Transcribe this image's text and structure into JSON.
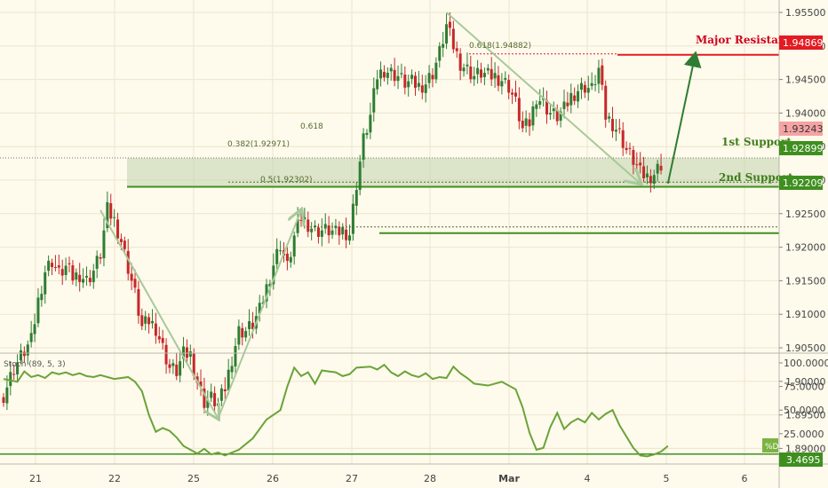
{
  "chart_data": [
    {
      "type": "candlestick",
      "title": "",
      "price_axis": {
        "ylim": [
          1.889,
          1.957
        ],
        "ticks": [
          "1.95500",
          "1.95000",
          "1.94500",
          "1.94000",
          "1.93500",
          "1.93000",
          "1.92500",
          "1.92000",
          "1.91500",
          "1.91000",
          "1.90500",
          "1.90000",
          "1.89500",
          "1.89000"
        ]
      },
      "x_axis": {
        "ticks": [
          "21",
          "22",
          "25",
          "26",
          "27",
          "28",
          "Mar",
          "4",
          "5",
          "6"
        ]
      },
      "price_labels": {
        "major_resistance": "1.94869",
        "current": "1.93243",
        "first_support": "1.92899",
        "second_support": "1.92209"
      },
      "annotations": {
        "major_resistance": "Major Resistance",
        "first_support": "1st Support",
        "second_support": "2nd Support",
        "fib_0618_left": "0.618",
        "fib_0618_right": "0.618(1.94882)",
        "fib_0382": "0.382(1.92971)",
        "fib_05": "0.5(1.92302)"
      },
      "zones": [
        {
          "name": "support-zone",
          "from": 1.929,
          "to": 1.9333
        }
      ],
      "close_path": [
        [
          0,
          1.898
        ],
        [
          1.5,
          1.902
        ],
        [
          3,
          1.9045
        ],
        [
          4,
          1.906
        ],
        [
          5,
          1.912
        ],
        [
          6,
          1.9165
        ],
        [
          7,
          1.918
        ],
        [
          8,
          1.916
        ],
        [
          9,
          1.917
        ],
        [
          10,
          1.9155
        ],
        [
          11,
          1.916
        ],
        [
          12,
          1.915
        ],
        [
          13,
          1.9165
        ],
        [
          14,
          1.919
        ],
        [
          15,
          1.9255
        ],
        [
          16,
          1.924
        ],
        [
          17,
          1.921
        ],
        [
          18,
          1.917
        ],
        [
          19,
          1.913
        ],
        [
          20,
          1.908
        ],
        [
          21,
          1.909
        ],
        [
          22,
          1.908
        ],
        [
          23,
          1.905
        ],
        [
          24,
          1.902
        ],
        [
          25,
          1.9015
        ],
        [
          26,
          1.904
        ],
        [
          27,
          1.904
        ],
        [
          28,
          1.9
        ],
        [
          29,
          1.897
        ],
        [
          30,
          1.8975
        ],
        [
          31,
          1.8965
        ],
        [
          32,
          1.899
        ],
        [
          33,
          1.9035
        ],
        [
          34,
          1.9075
        ],
        [
          35,
          1.9075
        ],
        [
          36,
          1.9085
        ],
        [
          37,
          1.9105
        ],
        [
          38,
          1.914
        ],
        [
          39,
          1.9175
        ],
        [
          40,
          1.9205
        ],
        [
          41,
          1.917
        ],
        [
          42,
          1.9215
        ],
        [
          43,
          1.9245
        ],
        [
          44,
          1.9235
        ],
        [
          45,
          1.9225
        ],
        [
          46,
          1.9225
        ],
        [
          47,
          1.9225
        ],
        [
          48,
          1.922
        ],
        [
          49,
          1.9225
        ],
        [
          50,
          1.922
        ],
        [
          51,
          1.9295
        ],
        [
          52,
          1.936
        ],
        [
          53,
          1.9395
        ],
        [
          54,
          1.9455
        ],
        [
          55,
          1.9465
        ],
        [
          56,
          1.946
        ],
        [
          57,
          1.9455
        ],
        [
          58,
          1.9445
        ],
        [
          59,
          1.9445
        ],
        [
          60,
          1.944
        ],
        [
          61,
          1.9445
        ],
        [
          62,
          1.946
        ],
        [
          63,
          1.949
        ],
        [
          64,
          1.953
        ],
        [
          65,
          1.95
        ],
        [
          66,
          1.9475
        ],
        [
          67,
          1.9465
        ],
        [
          68,
          1.9455
        ],
        [
          69,
          1.946
        ],
        [
          70,
          1.9455
        ],
        [
          71,
          1.9455
        ],
        [
          72,
          1.945
        ],
        [
          73,
          1.944
        ],
        [
          74,
          1.9415
        ],
        [
          75,
          1.9375
        ],
        [
          76,
          1.9385
        ],
        [
          77,
          1.9425
        ],
        [
          78,
          1.9415
        ],
        [
          79,
          1.94
        ],
        [
          80,
          1.9395
        ],
        [
          81,
          1.9405
        ],
        [
          82,
          1.9425
        ],
        [
          83,
          1.9435
        ],
        [
          84,
          1.944
        ],
        [
          85,
          1.9435
        ],
        [
          86,
          1.9465
        ],
        [
          87,
          1.9395
        ],
        [
          88,
          1.9385
        ],
        [
          89,
          1.937
        ],
        [
          90,
          1.9345
        ],
        [
          91,
          1.933
        ],
        [
          92,
          1.931
        ],
        [
          93,
          1.9305
        ],
        [
          94,
          1.931
        ],
        [
          95,
          1.9324
        ]
      ],
      "pattern_arrows": [
        {
          "from": [
            14,
            1.9255
          ],
          "to": [
            31,
            1.8945
          ]
        },
        {
          "from": [
            31,
            1.8945
          ],
          "to": [
            43,
            1.9255
          ]
        },
        {
          "from": [
            64,
            1.955
          ],
          "to": [
            92,
            1.9295
          ]
        },
        {
          "from": [
            96,
            1.9295
          ],
          "to": [
            100,
            1.949
          ]
        }
      ]
    },
    {
      "type": "line",
      "title": "Stoch (89, 5, 3)",
      "series": [
        {
          "name": "%D",
          "values": [
            [
              0,
              83
            ],
            [
              2,
              80
            ],
            [
              3,
              91
            ],
            [
              4,
              85
            ],
            [
              5,
              87
            ],
            [
              6,
              84
            ],
            [
              7,
              90
            ],
            [
              8,
              88
            ],
            [
              9,
              90
            ],
            [
              10,
              87
            ],
            [
              11,
              89
            ],
            [
              12,
              86
            ],
            [
              13,
              85
            ],
            [
              14,
              87
            ],
            [
              16,
              83
            ],
            [
              18,
              85
            ],
            [
              19,
              80
            ],
            [
              20,
              70
            ],
            [
              21,
              45
            ],
            [
              22,
              27
            ],
            [
              23,
              31
            ],
            [
              24,
              28
            ],
            [
              25,
              21
            ],
            [
              26,
              12
            ],
            [
              28,
              4
            ],
            [
              29,
              9
            ],
            [
              30,
              3
            ],
            [
              31,
              5
            ],
            [
              32,
              2
            ],
            [
              34,
              8
            ],
            [
              36,
              20
            ],
            [
              38,
              40
            ],
            [
              40,
              50
            ],
            [
              41,
              75
            ],
            [
              42,
              95
            ],
            [
              43,
              86
            ],
            [
              44,
              90
            ],
            [
              45,
              78
            ],
            [
              46,
              92
            ],
            [
              47,
              91
            ],
            [
              48,
              90
            ],
            [
              49,
              86
            ],
            [
              50,
              88
            ],
            [
              51,
              95
            ],
            [
              53,
              96
            ],
            [
              54,
              93
            ],
            [
              55,
              98
            ],
            [
              56,
              90
            ],
            [
              57,
              86
            ],
            [
              58,
              91
            ],
            [
              59,
              87
            ],
            [
              60,
              85
            ],
            [
              61,
              89
            ],
            [
              62,
              83
            ],
            [
              63,
              85
            ],
            [
              64,
              84
            ],
            [
              65,
              96
            ],
            [
              66,
              89
            ],
            [
              67,
              84
            ],
            [
              68,
              78
            ],
            [
              70,
              76
            ],
            [
              72,
              80
            ],
            [
              74,
              72
            ],
            [
              75,
              53
            ],
            [
              76,
              26
            ],
            [
              77,
              8
            ],
            [
              78,
              10
            ],
            [
              79,
              32
            ],
            [
              80,
              47
            ],
            [
              81,
              30
            ],
            [
              82,
              37
            ],
            [
              83,
              41
            ],
            [
              84,
              37
            ],
            [
              85,
              47
            ],
            [
              86,
              40
            ],
            [
              87,
              46
            ],
            [
              88,
              50
            ],
            [
              89,
              34
            ],
            [
              90,
              22
            ],
            [
              91,
              10
            ],
            [
              92,
              2
            ],
            [
              93,
              1
            ],
            [
              94,
              3
            ],
            [
              95,
              6
            ],
            [
              96,
              12
            ]
          ]
        }
      ],
      "ylim": [
        0,
        100
      ],
      "ticks": [
        "100.0000",
        "75.0000",
        "50.0000",
        "25.0000"
      ],
      "current_label": "3.4695",
      "legend_tag": "%D"
    }
  ]
}
